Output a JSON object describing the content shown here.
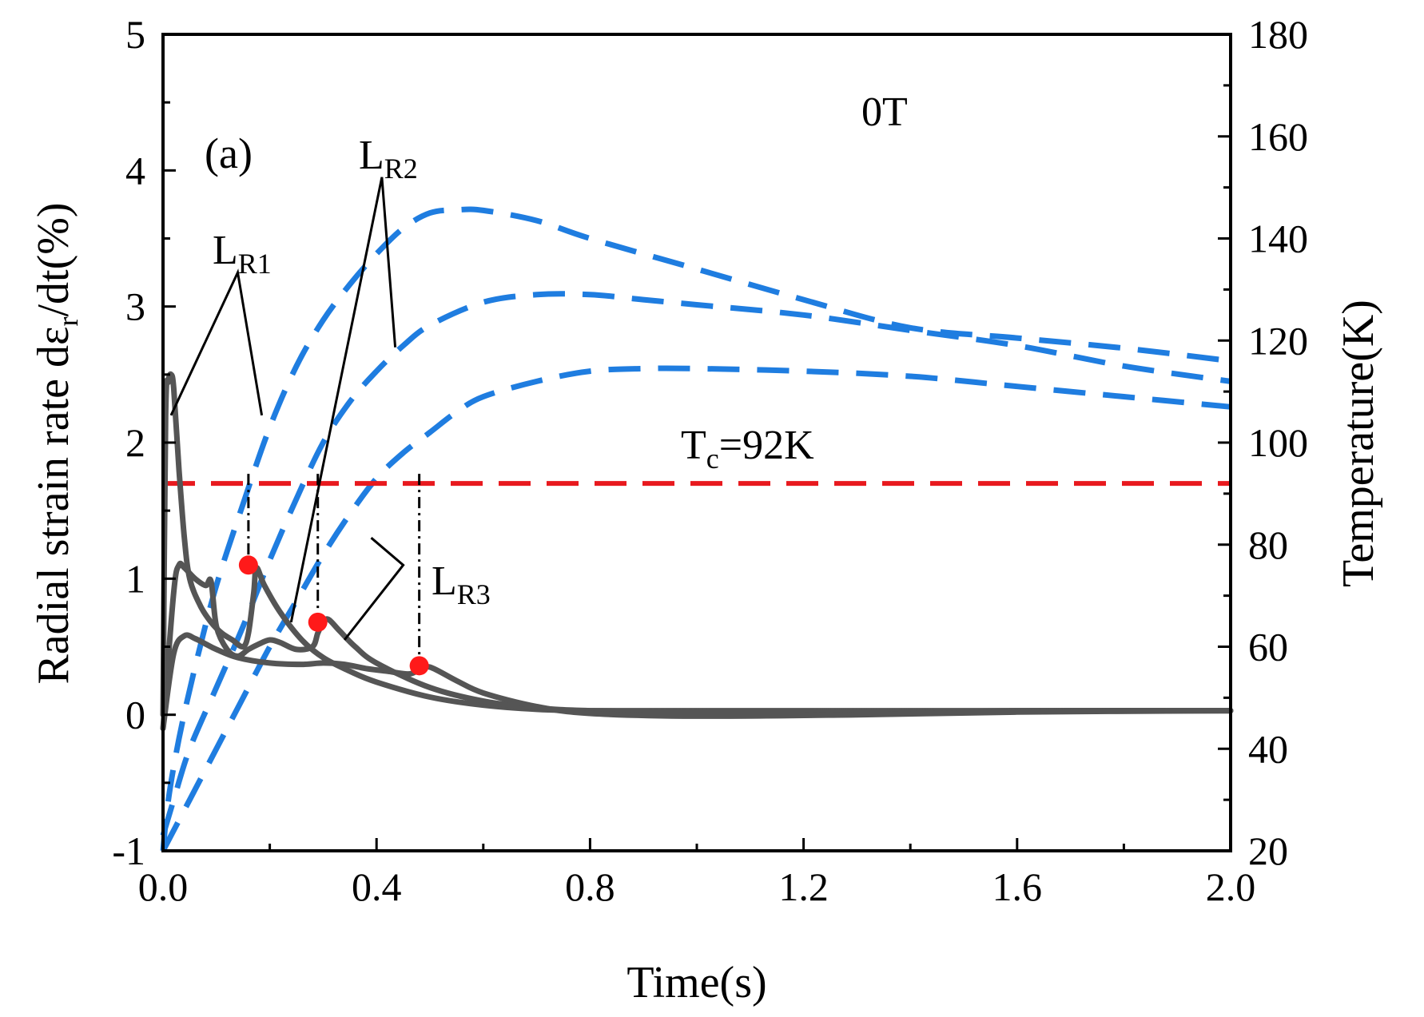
{
  "chart_data": {
    "type": "line",
    "panel_label": "(a)",
    "field_label": "0T",
    "xlabel": "Time(s)",
    "ylabel_left": {
      "pre": "Radial strain rate dε",
      "sub": "r",
      "post": "/dt(%)"
    },
    "ylabel_right": "Temperature(K)",
    "xlim": [
      0.0,
      2.0
    ],
    "ylim_left": [
      -1,
      5
    ],
    "ylim_right": [
      20,
      180
    ],
    "x_ticks": [
      0.0,
      0.4,
      0.8,
      1.2,
      1.6,
      2.0
    ],
    "x_tick_labels": [
      "0.0",
      "0.4",
      "0.8",
      "1.2",
      "1.6",
      "2.0"
    ],
    "y_left_ticks": [
      -1,
      0,
      1,
      2,
      3,
      4,
      5
    ],
    "y_left_tick_labels": [
      "-1",
      "0",
      "1",
      "2",
      "3",
      "4",
      "5"
    ],
    "y_right_ticks": [
      20,
      40,
      60,
      80,
      100,
      120,
      140,
      160,
      180
    ],
    "y_right_tick_labels": [
      "20",
      "40",
      "60",
      "80",
      "100",
      "120",
      "140",
      "160",
      "180"
    ],
    "colors": {
      "strain": "#555555",
      "temperature": "#1f7de0",
      "tc_line": "#e8191e",
      "marker": "#ff1a1a",
      "axis": "#000000"
    },
    "strain_series": [
      {
        "name": "L_R1 strain rate",
        "x": [
          0.0,
          0.005,
          0.01,
          0.015,
          0.02,
          0.03,
          0.04,
          0.05,
          0.07,
          0.09,
          0.11,
          0.13,
          0.15,
          0.16,
          0.17,
          0.175,
          0.19,
          0.22,
          0.26,
          0.3,
          0.35,
          0.4,
          0.5,
          0.6,
          0.7,
          0.8,
          1.0,
          1.3,
          1.6,
          2.0
        ],
        "y": [
          0.0,
          2.2,
          2.45,
          2.5,
          2.4,
          1.8,
          1.3,
          1.0,
          0.8,
          0.68,
          0.6,
          0.55,
          0.5,
          0.6,
          0.9,
          1.08,
          0.95,
          0.75,
          0.55,
          0.42,
          0.32,
          0.24,
          0.13,
          0.07,
          0.04,
          0.03,
          0.03,
          0.03,
          0.03,
          0.03
        ]
      },
      {
        "name": "L_R2 strain rate",
        "x": [
          0.0,
          0.02,
          0.03,
          0.04,
          0.06,
          0.08,
          0.09,
          0.1,
          0.12,
          0.14,
          0.16,
          0.18,
          0.2,
          0.22,
          0.25,
          0.28,
          0.29,
          0.3,
          0.31,
          0.33,
          0.36,
          0.4,
          0.5,
          0.6,
          0.7,
          0.8,
          1.0,
          1.3,
          1.6,
          2.0
        ],
        "y": [
          -0.1,
          0.9,
          1.1,
          1.08,
          1.0,
          0.95,
          0.98,
          0.65,
          0.48,
          0.43,
          0.48,
          0.52,
          0.55,
          0.53,
          0.48,
          0.5,
          0.6,
          0.68,
          0.7,
          0.62,
          0.5,
          0.38,
          0.2,
          0.1,
          0.05,
          0.03,
          0.02,
          0.02,
          0.03,
          0.03
        ]
      },
      {
        "name": "L_R3 strain rate",
        "x": [
          0.0,
          0.02,
          0.04,
          0.06,
          0.08,
          0.1,
          0.14,
          0.2,
          0.26,
          0.3,
          0.34,
          0.38,
          0.42,
          0.46,
          0.48,
          0.5,
          0.55,
          0.6,
          0.7,
          0.8,
          1.0,
          1.3,
          1.6,
          2.0
        ],
        "y": [
          -0.1,
          0.45,
          0.58,
          0.56,
          0.52,
          0.48,
          0.42,
          0.38,
          0.37,
          0.38,
          0.37,
          0.34,
          0.32,
          0.3,
          0.33,
          0.35,
          0.25,
          0.16,
          0.06,
          0.01,
          -0.01,
          0.0,
          0.02,
          0.03
        ]
      }
    ],
    "temperature_series": [
      {
        "name": "L_R1 temperature",
        "x": [
          0.0,
          0.01,
          0.03,
          0.06,
          0.1,
          0.15,
          0.2,
          0.25,
          0.3,
          0.35,
          0.4,
          0.45,
          0.5,
          0.55,
          0.6,
          0.7,
          0.8,
          1.0,
          1.2,
          1.4,
          1.6,
          1.8,
          2.0
        ],
        "y": [
          20,
          30,
          42,
          56,
          72,
          88,
          103,
          115,
          124,
          131,
          137,
          142,
          145,
          145.6,
          145.5,
          143.5,
          140,
          134,
          128,
          122.5,
          120.5,
          118.5,
          116
        ]
      },
      {
        "name": "L_R2 temperature",
        "x": [
          0.0,
          0.02,
          0.05,
          0.1,
          0.15,
          0.2,
          0.25,
          0.3,
          0.35,
          0.4,
          0.45,
          0.5,
          0.6,
          0.7,
          0.8,
          0.9,
          1.0,
          1.2,
          1.4,
          1.6,
          1.8,
          2.0
        ],
        "y": [
          23,
          30,
          40,
          52,
          64,
          77,
          89,
          100,
          108,
          114,
          119,
          123,
          127.5,
          129,
          129,
          128,
          127,
          125,
          122,
          119,
          115,
          112
        ]
      },
      {
        "name": "L_R3 temperature",
        "x": [
          0.0,
          0.05,
          0.1,
          0.15,
          0.2,
          0.25,
          0.3,
          0.35,
          0.4,
          0.45,
          0.5,
          0.55,
          0.6,
          0.7,
          0.8,
          0.9,
          1.0,
          1.2,
          1.4,
          1.6,
          1.8,
          2.0
        ],
        "y": [
          20,
          30,
          40,
          50,
          60,
          69,
          78,
          86,
          93,
          98,
          102,
          106,
          109,
          112,
          114,
          114.5,
          114.5,
          114,
          113,
          111,
          109,
          107
        ]
      }
    ],
    "tc_line": {
      "label_main": "T",
      "label_sub": "c",
      "label_post": "=92K",
      "value_K": 92
    },
    "markers": [
      {
        "name": "L_R1 onset",
        "x": 0.16,
        "y": 1.1
      },
      {
        "name": "L_R2 onset",
        "x": 0.29,
        "y": 0.68
      },
      {
        "name": "L_R3 onset",
        "x": 0.48,
        "y": 0.36
      }
    ],
    "annotations": [
      {
        "main": "L",
        "sub": "R1"
      },
      {
        "main": "L",
        "sub": "R2"
      },
      {
        "main": "L",
        "sub": "R3"
      }
    ]
  }
}
